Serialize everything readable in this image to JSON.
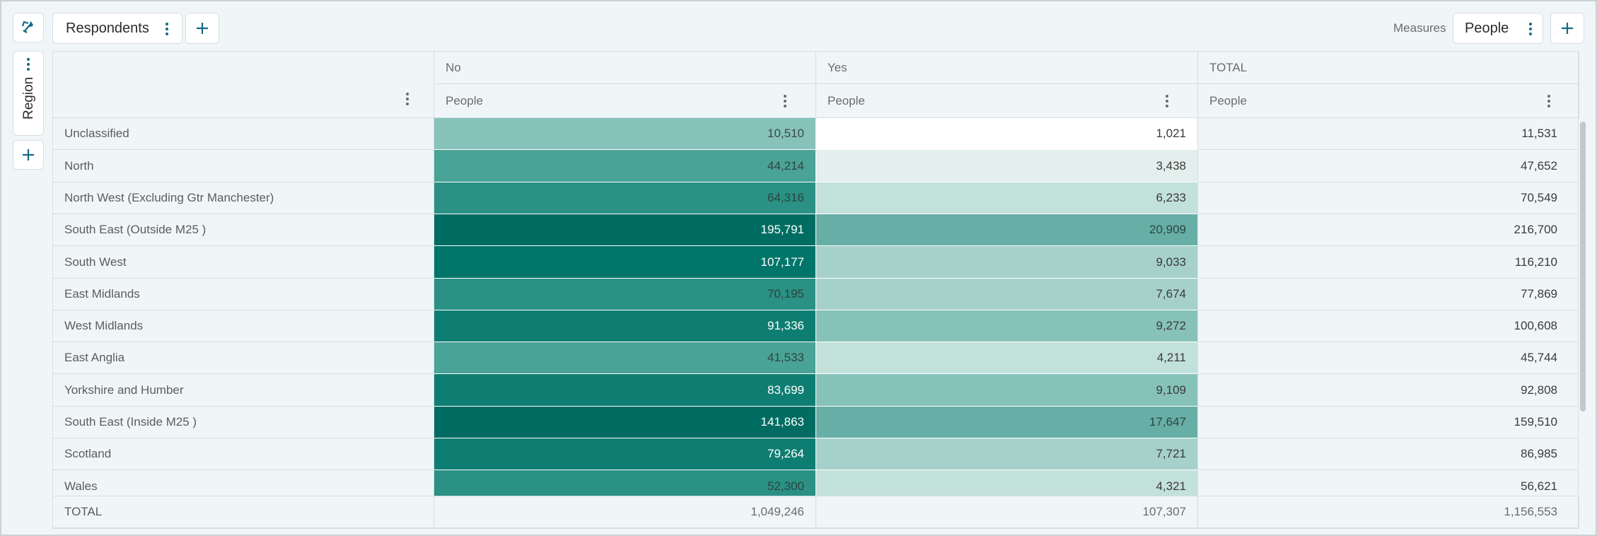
{
  "toolbar": {
    "rows_pill_label": "Respondents",
    "measures_caption": "Measures",
    "measures_pill_label": "People"
  },
  "side": {
    "region_label": "Region"
  },
  "columns": {
    "groups": [
      "No",
      "Yes",
      "TOTAL"
    ],
    "measure": "People"
  },
  "rows": [
    {
      "label": "Unclassified",
      "no": "10,510",
      "yes": "1,021",
      "total": "11,531"
    },
    {
      "label": "North",
      "no": "44,214",
      "yes": "3,438",
      "total": "47,652"
    },
    {
      "label": "North West (Excluding Gtr Manchester)",
      "no": "64,316",
      "yes": "6,233",
      "total": "70,549"
    },
    {
      "label": "South East (Outside M25 )",
      "no": "195,791",
      "yes": "20,909",
      "total": "216,700"
    },
    {
      "label": "South West",
      "no": "107,177",
      "yes": "9,033",
      "total": "116,210"
    },
    {
      "label": "East Midlands",
      "no": "70,195",
      "yes": "7,674",
      "total": "77,869"
    },
    {
      "label": "West Midlands",
      "no": "91,336",
      "yes": "9,272",
      "total": "100,608"
    },
    {
      "label": "East Anglia",
      "no": "41,533",
      "yes": "4,211",
      "total": "45,744"
    },
    {
      "label": "Yorkshire and Humber",
      "no": "83,699",
      "yes": "9,109",
      "total": "92,808"
    },
    {
      "label": "South East (Inside M25 )",
      "no": "141,863",
      "yes": "17,647",
      "total": "159,510"
    },
    {
      "label": "Scotland",
      "no": "79,264",
      "yes": "7,721",
      "total": "86,985"
    },
    {
      "label": "Wales",
      "no": "52,300",
      "yes": "4,321",
      "total": "56,621"
    }
  ],
  "totals": {
    "label": "TOTAL",
    "no": "1,049,246",
    "yes": "107,307",
    "total": "1,156,553"
  },
  "heat": {
    "no": [
      {
        "bg": "#86c2b9",
        "fg": "#3c4a48"
      },
      {
        "bg": "#4aa397",
        "fg": "#2e4542"
      },
      {
        "bg": "#2a9184",
        "fg": "#2c4541"
      },
      {
        "bg": "#016d62",
        "fg": "#ffffff"
      },
      {
        "bg": "#01756a",
        "fg": "#ffffff"
      },
      {
        "bg": "#2a9184",
        "fg": "#2c4541"
      },
      {
        "bg": "#0f7e72",
        "fg": "#ffffff"
      },
      {
        "bg": "#4aa397",
        "fg": "#2e4542"
      },
      {
        "bg": "#0f7e72",
        "fg": "#ffffff"
      },
      {
        "bg": "#016d62",
        "fg": "#ffffff"
      },
      {
        "bg": "#0f7e72",
        "fg": "#ffffff"
      },
      {
        "bg": "#2a9184",
        "fg": "#2c4541"
      }
    ],
    "yes": [
      {
        "bg": "#ffffff",
        "fg": "#3a3a3a"
      },
      {
        "bg": "#e2efec",
        "fg": "#3a3a3a"
      },
      {
        "bg": "#c3e1db",
        "fg": "#3a3a3a"
      },
      {
        "bg": "#67afa6",
        "fg": "#2e4542"
      },
      {
        "bg": "#a6d1ca",
        "fg": "#3a3a3a"
      },
      {
        "bg": "#a6d1ca",
        "fg": "#3a3a3a"
      },
      {
        "bg": "#87c2b9",
        "fg": "#3a3a3a"
      },
      {
        "bg": "#c3e1db",
        "fg": "#3a3a3a"
      },
      {
        "bg": "#87c2b9",
        "fg": "#3a3a3a"
      },
      {
        "bg": "#67afa6",
        "fg": "#2e4542"
      },
      {
        "bg": "#a6d1ca",
        "fg": "#3a3a3a"
      },
      {
        "bg": "#c3e1db",
        "fg": "#3a3a3a"
      }
    ]
  },
  "colors": {
    "accent": "#136b84",
    "grid_bg": "#f0f6f8"
  }
}
